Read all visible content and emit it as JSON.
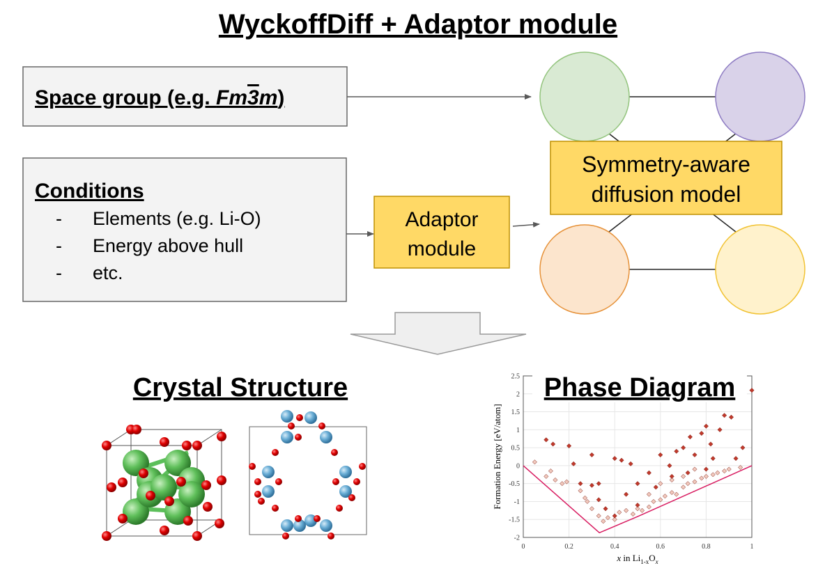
{
  "title": "WyckoffDiff + Adaptor module",
  "space_group": {
    "label": "Space group (e.g. ",
    "symbol": [
      "Fm",
      "3",
      "m"
    ],
    "close": ")"
  },
  "conditions": {
    "title": "Conditions",
    "items": [
      {
        "bullet": "-",
        "text": "Elements (e.g. Li-O)"
      },
      {
        "bullet": "-",
        "text": "Energy above hull"
      },
      {
        "bullet": "-",
        "text": "etc."
      }
    ]
  },
  "adaptor": {
    "lines": [
      "Adaptor",
      "module"
    ]
  },
  "model": {
    "lines": [
      "Symmetry-aware",
      "diffusion model"
    ]
  },
  "outputs": {
    "crystal": "Crystal Structure",
    "phase": "Phase Diagram"
  },
  "chart_data": {
    "type": "scatter",
    "x_label": [
      "x",
      " in Li",
      "1-x",
      "O",
      "x"
    ],
    "y_label": "Formation Energy [eV/atom]",
    "xlim": [
      0,
      1
    ],
    "ylim": [
      -2,
      2.5
    ],
    "xticks": [
      0,
      0.2,
      0.4,
      0.6,
      0.8,
      1
    ],
    "yticks": [
      -2,
      -1.5,
      -1,
      -0.5,
      0,
      0.5,
      1,
      1.5,
      2,
      2.5
    ],
    "grid": true,
    "series": [
      {
        "type": "scatter",
        "color": "#f1c9bd",
        "x": [
          0.05,
          0.1,
          0.12,
          0.14,
          0.17,
          0.19,
          0.25,
          0.27,
          0.28,
          0.3,
          0.33,
          0.35,
          0.37,
          0.4,
          0.42,
          0.45,
          0.48,
          0.5,
          0.52,
          0.55,
          0.57,
          0.6,
          0.62,
          0.65,
          0.67,
          0.7,
          0.72,
          0.75,
          0.78,
          0.8,
          0.83,
          0.85,
          0.88,
          0.9,
          0.95,
          0.6,
          0.7,
          0.55,
          0.65,
          0.75
        ],
        "values": [
          0.1,
          -0.3,
          -0.15,
          -0.4,
          -0.5,
          -0.45,
          -0.7,
          -0.9,
          -1.0,
          -1.2,
          -1.4,
          -1.55,
          -1.45,
          -1.5,
          -1.3,
          -1.25,
          -1.35,
          -1.2,
          -1.25,
          -1.15,
          -1.0,
          -0.95,
          -0.85,
          -0.75,
          -0.8,
          -0.6,
          -0.5,
          -0.45,
          -0.35,
          -0.3,
          -0.25,
          -0.2,
          -0.15,
          -0.1,
          -0.05,
          -0.5,
          -0.3,
          -0.8,
          -0.4,
          -0.1
        ]
      },
      {
        "type": "scatter",
        "color": "#c0392b",
        "x": [
          0.1,
          0.13,
          0.2,
          0.22,
          0.25,
          0.3,
          0.33,
          0.33,
          0.4,
          0.43,
          0.47,
          0.5,
          0.55,
          0.6,
          0.64,
          0.67,
          0.7,
          0.73,
          0.75,
          0.78,
          0.8,
          0.82,
          0.86,
          0.88,
          0.91,
          0.93,
          0.96,
          1,
          0.45,
          0.58,
          0.65,
          0.72,
          0.8,
          0.83,
          0.3,
          0.36,
          0.4,
          0.5
        ],
        "values": [
          0.72,
          0.6,
          0.55,
          0.05,
          -0.5,
          0.3,
          -0.5,
          -0.95,
          0.2,
          0.15,
          0.05,
          -0.5,
          -0.2,
          0.3,
          0,
          0.4,
          0.5,
          0.8,
          0.3,
          0.9,
          1.1,
          0.6,
          1,
          1.4,
          1.35,
          0.2,
          0.5,
          2.1,
          -0.8,
          -0.6,
          -0.3,
          -0.2,
          -0.1,
          0.2,
          -0.55,
          -1.2,
          -1.4,
          -1.1
        ]
      },
      {
        "type": "line",
        "color": "#d81b60",
        "x": [
          0,
          0.333,
          0.5,
          1
        ],
        "values": [
          0,
          -1.87,
          -1.42,
          0
        ]
      }
    ]
  }
}
